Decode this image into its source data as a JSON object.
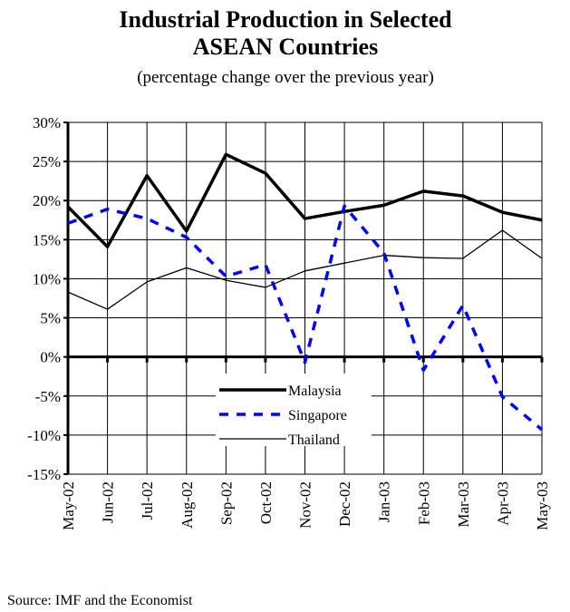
{
  "chart_data": {
    "type": "line",
    "title": [
      "Industrial Production in Selected",
      "ASEAN Countries"
    ],
    "subtitle": "(percentage change over the previous year)",
    "source": "Source: IMF and  the Economist",
    "categories": [
      "May-02",
      "Jun-02",
      "Jul-02",
      "Aug-02",
      "Sep-02",
      "Oct-02",
      "Nov-02",
      "Dec-02",
      "Jan-03",
      "Feb-03",
      "Mar-03",
      "Apr-03",
      "May-03"
    ],
    "series": [
      {
        "name": "Malaysia",
        "color": "#000000",
        "width": 3.5,
        "dash": "none",
        "values": [
          19.2,
          14.1,
          23.2,
          16.1,
          25.9,
          23.5,
          17.7,
          18.6,
          19.4,
          21.2,
          20.6,
          18.5,
          17.5
        ]
      },
      {
        "name": "Singapore",
        "color": "#0000ff",
        "width": 3.5,
        "dash": "10,9",
        "values": [
          17.1,
          18.9,
          17.7,
          15.3,
          10.3,
          11.8,
          -0.7,
          19.3,
          13.3,
          -1.7,
          6.6,
          -5.1,
          -9.3
        ]
      },
      {
        "name": "Thailand",
        "color": "#000000",
        "width": 1.3,
        "dash": "none",
        "values": [
          8.3,
          6.1,
          9.6,
          11.4,
          9.8,
          8.9,
          11.0,
          12.0,
          13.0,
          12.7,
          12.6,
          16.2,
          12.6
        ]
      }
    ],
    "ylim": [
      -15,
      30
    ],
    "yticks": [
      {
        "value": -15,
        "label": "-15%"
      },
      {
        "value": -10,
        "label": "-10%"
      },
      {
        "value": -5,
        "label": "-5%"
      },
      {
        "value": 0,
        "label": "0%"
      },
      {
        "value": 5,
        "label": "5%"
      },
      {
        "value": 10,
        "label": "10%"
      },
      {
        "value": 15,
        "label": "15%"
      },
      {
        "value": 20,
        "label": "20%"
      },
      {
        "value": 25,
        "label": "25%"
      },
      {
        "value": 30,
        "label": "30%"
      }
    ],
    "grid": true
  }
}
